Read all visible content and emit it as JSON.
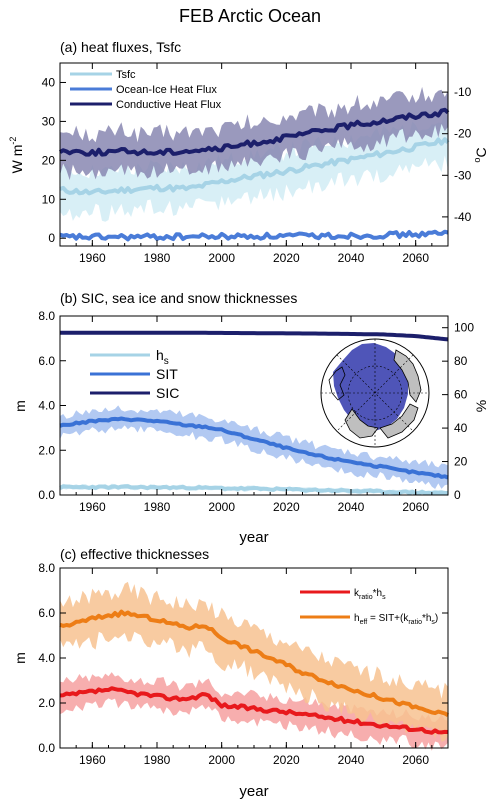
{
  "figure": {
    "title": "FEB Arctic Ocean"
  },
  "chart_data": [
    {
      "type": "line",
      "title": "(a) heat fluxes, Tsfc",
      "xlabel": "",
      "ylabel": "W m⁻²",
      "y2label": "°C",
      "xlim": [
        1950,
        2070
      ],
      "ylim": [
        -2,
        45
      ],
      "y2lim": [
        -47,
        -3
      ],
      "xticks": [
        "1960",
        "1980",
        "2000",
        "2020",
        "2040",
        "2060"
      ],
      "yticks": [
        "0",
        "10",
        "20",
        "30",
        "40"
      ],
      "y2ticks": [
        "-10",
        "-20",
        "-30",
        "-40"
      ],
      "grid": false,
      "legend": "top-left",
      "series": [
        {
          "name": "Tsfc",
          "axis": "right",
          "color": "#a6d3e6",
          "band_color": "#d1ecf5",
          "x": [
            1950,
            1960,
            1970,
            1980,
            1990,
            2000,
            2010,
            2020,
            2030,
            2040,
            2050,
            2060,
            2070
          ],
          "values": [
            -33.5,
            -34.2,
            -33.5,
            -33.0,
            -33.2,
            -31.5,
            -30.2,
            -29.0,
            -27.5,
            -26.2,
            -24.7,
            -23.2,
            -21.5
          ],
          "band_halfwidth": 5
        },
        {
          "name": "Ocean-Ice Heat Flux",
          "axis": "left",
          "color": "#4a7cd8",
          "band_color": "#9cb4ec",
          "x": [
            1950,
            1970,
            1990,
            2010,
            2030,
            2050,
            2070
          ],
          "values": [
            0.3,
            0.3,
            0.4,
            0.5,
            0.6,
            0.8,
            1.2
          ],
          "band_halfwidth": 0.3
        },
        {
          "name": "Conductive Heat Flux",
          "axis": "left",
          "color": "#1c1f6b",
          "band_color": "#8887b2",
          "x": [
            1950,
            1960,
            1970,
            1980,
            1990,
            2000,
            2010,
            2020,
            2030,
            2040,
            2050,
            2060,
            2070
          ],
          "values": [
            22.5,
            22.0,
            22.3,
            22.0,
            22.5,
            23.0,
            24.5,
            25.8,
            27.5,
            29.0,
            30.2,
            31.5,
            32.5
          ],
          "band_halfwidth": 5
        }
      ]
    },
    {
      "type": "line",
      "title": "(b) SIC, sea ice and snow thicknesses",
      "xlabel": "year",
      "ylabel": "m",
      "y2label": "%",
      "xlim": [
        1950,
        2070
      ],
      "ylim": [
        0,
        8
      ],
      "y2lim": [
        0,
        107
      ],
      "xticks": [
        "1960",
        "1980",
        "2000",
        "2020",
        "2040",
        "2060"
      ],
      "yticks": [
        "0.0",
        "2.0",
        "4.0",
        "6.0",
        "8.0"
      ],
      "y2ticks": [
        "0",
        "20",
        "40",
        "60",
        "80",
        "100"
      ],
      "grid": false,
      "legend": "top-left",
      "series": [
        {
          "name": "h_s",
          "axis": "left",
          "color": "#a6d3e6",
          "band_color": "#cde8f2",
          "x": [
            1950,
            1970,
            1990,
            2010,
            2030,
            2050,
            2070
          ],
          "values": [
            0.35,
            0.35,
            0.33,
            0.28,
            0.22,
            0.15,
            0.08
          ],
          "band_halfwidth": 0.1
        },
        {
          "name": "SIT",
          "axis": "left",
          "color": "#3a72d6",
          "band_color": "#a5bff0",
          "x": [
            1950,
            1955,
            1960,
            1965,
            1970,
            1975,
            1980,
            1985,
            1990,
            1995,
            2000,
            2005,
            2010,
            2015,
            2020,
            2025,
            2030,
            2035,
            2040,
            2045,
            2050,
            2055,
            2060,
            2065,
            2070
          ],
          "values": [
            3.1,
            3.2,
            3.3,
            3.35,
            3.4,
            3.35,
            3.3,
            3.2,
            3.1,
            3.05,
            2.9,
            2.7,
            2.5,
            2.3,
            2.1,
            1.9,
            1.75,
            1.6,
            1.5,
            1.35,
            1.25,
            1.1,
            1.0,
            0.9,
            0.8
          ],
          "band_halfwidth": 0.45
        },
        {
          "name": "SIC",
          "axis": "right",
          "color": "#1c1f6b",
          "band_color": "#1c1f6b",
          "x": [
            1950,
            1990,
            2030,
            2050,
            2060,
            2070
          ],
          "values": [
            97,
            97,
            96.5,
            96,
            95,
            93
          ],
          "band_halfwidth": 0
        }
      ],
      "legend_labels": {
        "hs_main": "h",
        "hs_sub": "s",
        "sit": "SIT",
        "sic": "SIC"
      }
    },
    {
      "type": "line",
      "title": "(c) effective thicknesses",
      "xlabel": "year",
      "ylabel": "m",
      "xlim": [
        1950,
        2070
      ],
      "ylim": [
        0,
        8
      ],
      "xticks": [
        "1960",
        "1980",
        "2000",
        "2020",
        "2040",
        "2060"
      ],
      "yticks": [
        "0.0",
        "2.0",
        "4.0",
        "6.0",
        "8.0"
      ],
      "grid": false,
      "legend": "top-right",
      "series": [
        {
          "name": "k_ratio*h_s",
          "color": "#e8191c",
          "band_color": "#f6a0a0",
          "x": [
            1950,
            1955,
            1960,
            1965,
            1970,
            1975,
            1980,
            1985,
            1990,
            1995,
            2000,
            2010,
            2020,
            2030,
            2040,
            2050,
            2060,
            2070
          ],
          "values": [
            2.3,
            2.4,
            2.5,
            2.6,
            2.5,
            2.4,
            2.3,
            2.2,
            2.2,
            2.4,
            1.9,
            1.75,
            1.6,
            1.4,
            1.2,
            1.0,
            0.85,
            0.65
          ],
          "band_halfwidth": 0.6
        },
        {
          "name": "h_eff = SIT+(k_ratio*h_s)",
          "color": "#ed7d16",
          "band_color": "#f7c290",
          "x": [
            1950,
            1955,
            1960,
            1965,
            1970,
            1975,
            1980,
            1985,
            1990,
            1995,
            2000,
            2005,
            2010,
            2015,
            2020,
            2025,
            2030,
            2035,
            2040,
            2045,
            2050,
            2055,
            2060,
            2065,
            2070
          ],
          "values": [
            5.4,
            5.55,
            5.75,
            5.9,
            6.0,
            5.85,
            5.7,
            5.5,
            5.35,
            5.45,
            4.9,
            4.6,
            4.3,
            4.0,
            3.7,
            3.35,
            3.1,
            2.85,
            2.6,
            2.4,
            2.2,
            2.0,
            1.8,
            1.6,
            1.45
          ],
          "band_halfwidth": 1.0
        }
      ],
      "legend_labels": {
        "krh_k": "k",
        "krh_sub": "ratio",
        "krh_rest": "*h",
        "krh_s": "s",
        "heff_h": "h",
        "heff_sub": "eff",
        "heff_mid": " = SIT+(k",
        "heff_ratio": "ratio",
        "heff_h2": "*h",
        "heff_s": "s",
        "heff_close": ")"
      }
    }
  ],
  "panel_a_labels": {
    "ylabel_main": "W m",
    "ylabel_sup": "-2",
    "y2label_main": "o",
    "y2label_c": "C"
  },
  "colors": {
    "axis": "#000000",
    "background": "#ffffff",
    "map_ocean": "#ffffff",
    "map_ice": "#4f55b8",
    "map_land": "#bfbfbf"
  }
}
